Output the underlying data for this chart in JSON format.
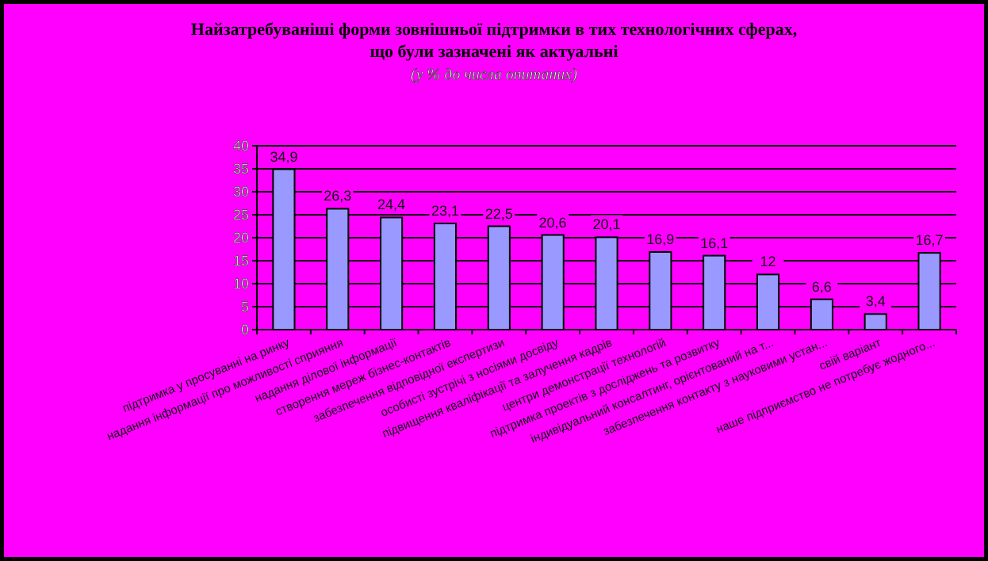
{
  "chart_data": {
    "type": "bar",
    "title": "Найзатребуваніші форми зовнішньої підтримки в тих технологічних сферах, що були зазначені як актуальні",
    "subtitle": "(у % до числа опитаних)",
    "categories": [
      "підтримка у просуванні на ринку",
      "надання інформації про можливості сприяння",
      "надання ділової інформації",
      "створення мереж бізнес-контактів",
      "забезпечення відповідної експертизи",
      "особисті зустрічі з носіями досвіду",
      "підвищення кваліфікації та залучення кадрів",
      "центри демонстрації технологій",
      "підтримка проектів з досліджень та розвитку",
      "індивідуальний консалтинг, орієнтований на т...",
      "забезпечення контакту з науковими устан...",
      "свій варіант",
      "наше підприємство не потребує жодного..."
    ],
    "values": [
      34.9,
      26.3,
      24.4,
      23.1,
      22.5,
      20.6,
      20.1,
      16.9,
      16.1,
      12,
      6.6,
      3.4,
      16.7
    ],
    "value_labels": [
      "34,9",
      "26,3",
      "24,4",
      "23,1",
      "22,5",
      "20,6",
      "20,1",
      "16,9",
      "16,1",
      "12",
      "6,6",
      "3,4",
      "16,7"
    ],
    "color": "#9999ff",
    "ylim": [
      0,
      40
    ],
    "yticks": [
      0,
      5,
      10,
      15,
      20,
      25,
      30,
      35,
      40
    ],
    "grid": "y"
  }
}
